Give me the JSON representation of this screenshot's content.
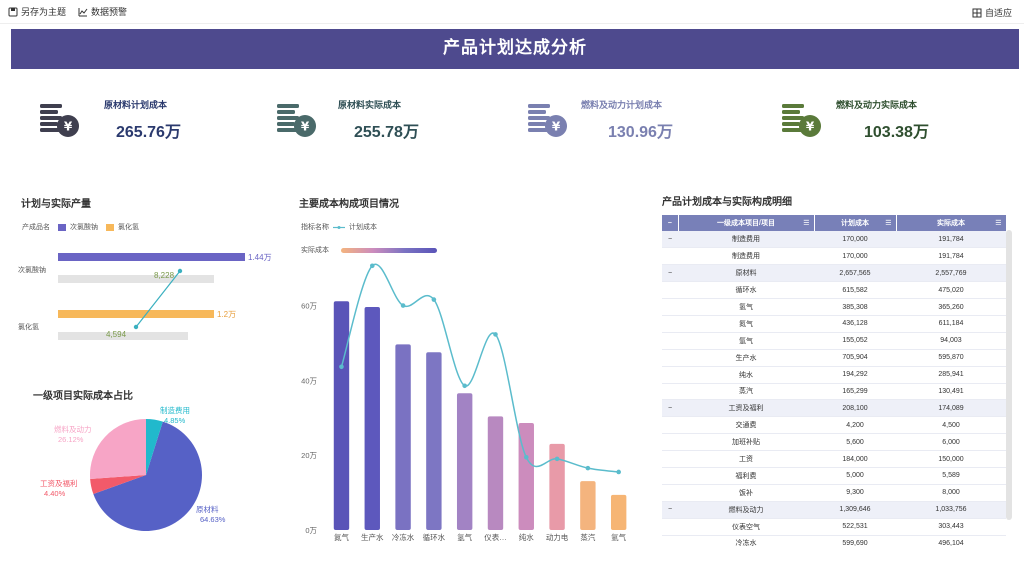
{
  "toolbar": {
    "save_as_theme": "另存为主题",
    "data_alert": "数据预警",
    "adaptive": "自适应"
  },
  "banner": {
    "title": "产品计划达成分析"
  },
  "kpis": [
    {
      "title": "原材料计划成本",
      "value": "265.76万",
      "color": "#3f3f4f",
      "title_color": "#2b3a6e"
    },
    {
      "title": "原材料实际成本",
      "value": "255.78万",
      "color": "#4a6a6a",
      "title_color": "#2f4f55"
    },
    {
      "title": "燃料及动力计划成本",
      "value": "130.96万",
      "color": "#7a80b0",
      "title_color": "#7a80b0"
    },
    {
      "title": "燃料及动力实际成本",
      "value": "103.38万",
      "color": "#5a7a3a",
      "title_color": "#2f4f2f"
    }
  ],
  "output": {
    "title": "计划与实际产量",
    "legend_label": "产成品名",
    "series": [
      "次氯酸钠",
      "氯化氢"
    ],
    "colors": [
      "#6a64c4",
      "#f7b85a"
    ],
    "categories": [
      "次氯酸钠",
      "氯化氢"
    ],
    "plan_labels": [
      "1.44万",
      "1.2万"
    ],
    "actual_labels": [
      "8,228",
      "4,594"
    ]
  },
  "pie": {
    "title": "一级项目实际成本占比",
    "slices": [
      {
        "name": "原材料",
        "pct": "64.63%",
        "value": 64.63,
        "color": "#5661c6"
      },
      {
        "name": "工资及福利",
        "pct": "4.40%",
        "value": 4.4,
        "color": "#f25a6a"
      },
      {
        "name": "燃料及动力",
        "pct": "26.12%",
        "value": 26.12,
        "color": "#f7a5c6"
      },
      {
        "name": "制造费用",
        "pct": "4.85%",
        "value": 4.85,
        "color": "#21b9cc"
      }
    ]
  },
  "cost_chart": {
    "title": "主要成本构成项目情况",
    "indicator_label": "指标名称",
    "line_legend": "计划成本",
    "actual_label": "实际成本",
    "y_ticks": [
      "0万",
      "20万",
      "40万",
      "60万"
    ],
    "line_color": "#5bbccc"
  },
  "chart_data": {
    "type": "bar",
    "title": "主要成本构成项目情况",
    "categories": [
      "氮气",
      "生产水",
      "冷冻水",
      "循环水",
      "氢气",
      "仪表…",
      "纯水",
      "动力电",
      "蒸汽",
      "氩气"
    ],
    "ylim": [
      0,
      700000
    ],
    "series": [
      {
        "name": "实际成本",
        "type": "bar",
        "values": [
          611184,
          595870,
          496104,
          475020,
          365260,
          303443,
          285941,
          230000,
          130491,
          94003
        ]
      },
      {
        "name": "计划成本",
        "type": "line",
        "values": [
          436128,
          705904,
          599690,
          615582,
          385308,
          522531,
          194292,
          190000,
          165299,
          155052
        ]
      }
    ],
    "bar_colors": [
      "#5a54b8",
      "#5d58bd",
      "#7a72c2",
      "#7d76c3",
      "#a283c4",
      "#b889c0",
      "#cc8cbd",
      "#e89aa8",
      "#f4b47e",
      "#f6b574"
    ]
  },
  "detail": {
    "title": "产品计划成本与实际构成明细",
    "headers": [
      "一级成本项目/项目",
      "计划成本",
      "实际成本"
    ],
    "rows": [
      {
        "group": true,
        "name": "制造费用",
        "plan": "170,000",
        "actual": "191,784"
      },
      {
        "group": false,
        "name": "制造费用",
        "plan": "170,000",
        "actual": "191,784"
      },
      {
        "group": true,
        "name": "原材料",
        "plan": "2,657,565",
        "actual": "2,557,769"
      },
      {
        "group": false,
        "name": "循环水",
        "plan": "615,582",
        "actual": "475,020"
      },
      {
        "group": false,
        "name": "氢气",
        "plan": "385,308",
        "actual": "365,260"
      },
      {
        "group": false,
        "name": "氮气",
        "plan": "436,128",
        "actual": "611,184"
      },
      {
        "group": false,
        "name": "氩气",
        "plan": "155,052",
        "actual": "94,003"
      },
      {
        "group": false,
        "name": "生产水",
        "plan": "705,904",
        "actual": "595,870"
      },
      {
        "group": false,
        "name": "纯水",
        "plan": "194,292",
        "actual": "285,941"
      },
      {
        "group": false,
        "name": "蒸汽",
        "plan": "165,299",
        "actual": "130,491"
      },
      {
        "group": true,
        "name": "工资及福利",
        "plan": "208,100",
        "actual": "174,089"
      },
      {
        "group": false,
        "name": "交通费",
        "plan": "4,200",
        "actual": "4,500"
      },
      {
        "group": false,
        "name": "加班补贴",
        "plan": "5,600",
        "actual": "6,000"
      },
      {
        "group": false,
        "name": "工资",
        "plan": "184,000",
        "actual": "150,000"
      },
      {
        "group": false,
        "name": "福利费",
        "plan": "5,000",
        "actual": "5,589"
      },
      {
        "group": false,
        "name": "饭补",
        "plan": "9,300",
        "actual": "8,000"
      },
      {
        "group": true,
        "name": "燃料及动力",
        "plan": "1,309,646",
        "actual": "1,033,756"
      },
      {
        "group": false,
        "name": "仪表空气",
        "plan": "522,531",
        "actual": "303,443"
      },
      {
        "group": false,
        "name": "冷冻水",
        "plan": "599,690",
        "actual": "496,104"
      }
    ]
  }
}
